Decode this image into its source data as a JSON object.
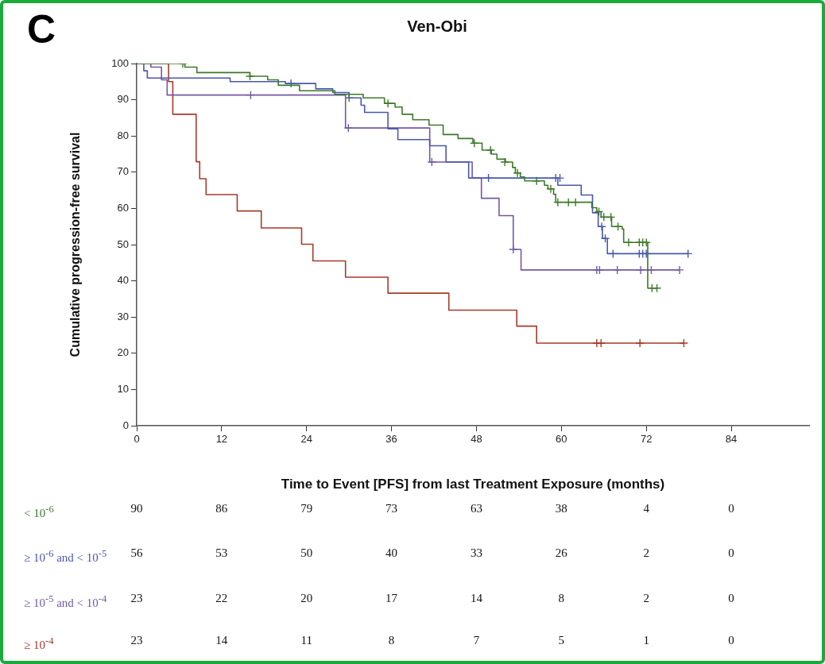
{
  "chart_data": {
    "type": "step",
    "title": "Ven-Obi",
    "xlabel": "Time to Event [PFS] from last Treatment Exposure (months)",
    "ylabel": "Cumulative progression-free survival",
    "xlim": [
      0,
      95
    ],
    "xticks": [
      0,
      12,
      24,
      36,
      48,
      60,
      72,
      84
    ],
    "ylim": [
      0,
      100
    ],
    "yticks": [
      0,
      10,
      20,
      30,
      40,
      50,
      60,
      70,
      80,
      90,
      100
    ],
    "grid": false,
    "legend": false,
    "marker": "none",
    "line_style": "solid",
    "annotations": [
      "C",
      "90",
      "86",
      "79",
      "73",
      "63",
      "38",
      "4",
      "0",
      "56",
      "53",
      "50",
      "40",
      "33",
      "26",
      "2",
      "0",
      "23",
      "22",
      "20",
      "17",
      "14",
      "8",
      "2",
      "0",
      "23",
      "14",
      "11",
      "8",
      "7",
      "5",
      "1",
      "0"
    ],
    "series": [
      {
        "name": "< 10$^{-6}$",
        "color": "#3d7a2a",
        "x": [
          0,
          6.8,
          8.5,
          16,
          18.5,
          20,
          23,
          28,
          32,
          35,
          36.5,
          37.5,
          39,
          41.3,
          43.3,
          45.4,
          47.5,
          48.8,
          50.1,
          50.9,
          52.1,
          53.1,
          53.5,
          54.2,
          54.8,
          57.6,
          58.1,
          58.9,
          59.2,
          64.3,
          65.0,
          65.6,
          67.1,
          68.6,
          68.8,
          72.2,
          73.6
        ],
        "values": [
          100,
          99,
          97.5,
          96.5,
          95.5,
          94,
          92.5,
          91.5,
          90.5,
          89,
          88,
          86,
          84.5,
          83,
          80.4,
          79.3,
          78,
          76.1,
          75,
          73.6,
          72.8,
          71.3,
          69.8,
          68.7,
          67.6,
          66.4,
          65.4,
          63.9,
          61.7,
          60.2,
          59.1,
          57.6,
          55,
          54.3,
          50.6,
          38,
          38
        ]
      },
      {
        "name": "≥ 10$^{-6}$ and < 10$^{-5}$",
        "color": "#4a58ad",
        "x": [
          0,
          1,
          1.5,
          13.2,
          21,
          25.3,
          27.7,
          30,
          31.7,
          32.2,
          35.5,
          36.9,
          41.4,
          43.7,
          46.9,
          59.5,
          62.8,
          64.4,
          65.2,
          65.8,
          66.5,
          77.9
        ],
        "values": [
          100,
          98,
          96,
          95,
          94.5,
          93,
          92,
          90.5,
          88.5,
          86.5,
          82,
          79,
          77.3,
          72.8,
          68.4,
          66.4,
          63.7,
          58.8,
          55,
          51.7,
          47.5,
          47.5
        ]
      },
      {
        "name": "≥ 10$^{-5}$ and < 10$^{-4}$",
        "color": "#7458a4",
        "x": [
          0,
          2,
          3.5,
          4.3,
          29.5,
          41.4,
          47.4,
          48.7,
          51.2,
          53.2,
          54.3,
          76.7
        ],
        "values": [
          100,
          99,
          95.5,
          91.3,
          82.2,
          72.8,
          68.4,
          62.8,
          58,
          48.7,
          43,
          43
        ]
      },
      {
        "name": "≥ 10$^{-4}$",
        "color": "#a83a2a",
        "x": [
          0,
          4.5,
          5.1,
          5.4,
          8.4,
          8.9,
          9.8,
          14.2,
          17.6,
          23.3,
          24.9,
          29.5,
          35.5,
          44.1,
          53.7,
          56.5,
          77.3
        ],
        "values": [
          100,
          95,
          86,
          86,
          72.9,
          68.2,
          63.8,
          59.3,
          54.6,
          50.1,
          45.5,
          41,
          36.6,
          31.9,
          27.5,
          22.8,
          22.8
        ]
      },
      {
        "type": "scatter",
        "marker": "cross",
        "color": "#3d7a2a",
        "x": [
          6.5,
          16,
          30,
          35.5,
          47.7,
          50,
          52,
          53.8,
          56.5,
          58.5,
          59.5,
          61,
          62,
          65.3,
          66,
          67,
          68,
          69.5,
          71,
          71.5,
          72,
          72.8,
          73.5
        ],
        "values": [
          100,
          96.5,
          90.5,
          89,
          78,
          76.1,
          72.8,
          69.8,
          67.6,
          65.4,
          61.7,
          61.7,
          61.7,
          59.1,
          57.6,
          57.6,
          55,
          50.6,
          50.6,
          50.6,
          50.6,
          38,
          38
        ]
      },
      {
        "type": "scatter",
        "marker": "cross",
        "color": "#4a58ad",
        "x": [
          21.8,
          49.7,
          59.2,
          59.8,
          65.7,
          66.2,
          67.3,
          71,
          71.5,
          72,
          77.9
        ],
        "values": [
          94.5,
          68.4,
          68.4,
          68.4,
          55,
          51.7,
          47.5,
          47.5,
          47.5,
          47.5,
          47.5
        ]
      },
      {
        "type": "scatter",
        "marker": "cross",
        "color": "#7458a4",
        "x": [
          16.1,
          29.9,
          41.7,
          53.2,
          65,
          65.4,
          67.9,
          71.2,
          72.7,
          76.7
        ],
        "values": [
          91.3,
          82.2,
          72.8,
          48.7,
          43,
          43,
          43,
          43,
          43,
          43
        ]
      },
      {
        "type": "scatter",
        "marker": "cross",
        "color": "#a83a2a",
        "x": [
          65,
          65.6,
          71.1,
          77.3
        ],
        "values": [
          22.8,
          22.8,
          22.8,
          22.8
        ]
      }
    ]
  }
}
